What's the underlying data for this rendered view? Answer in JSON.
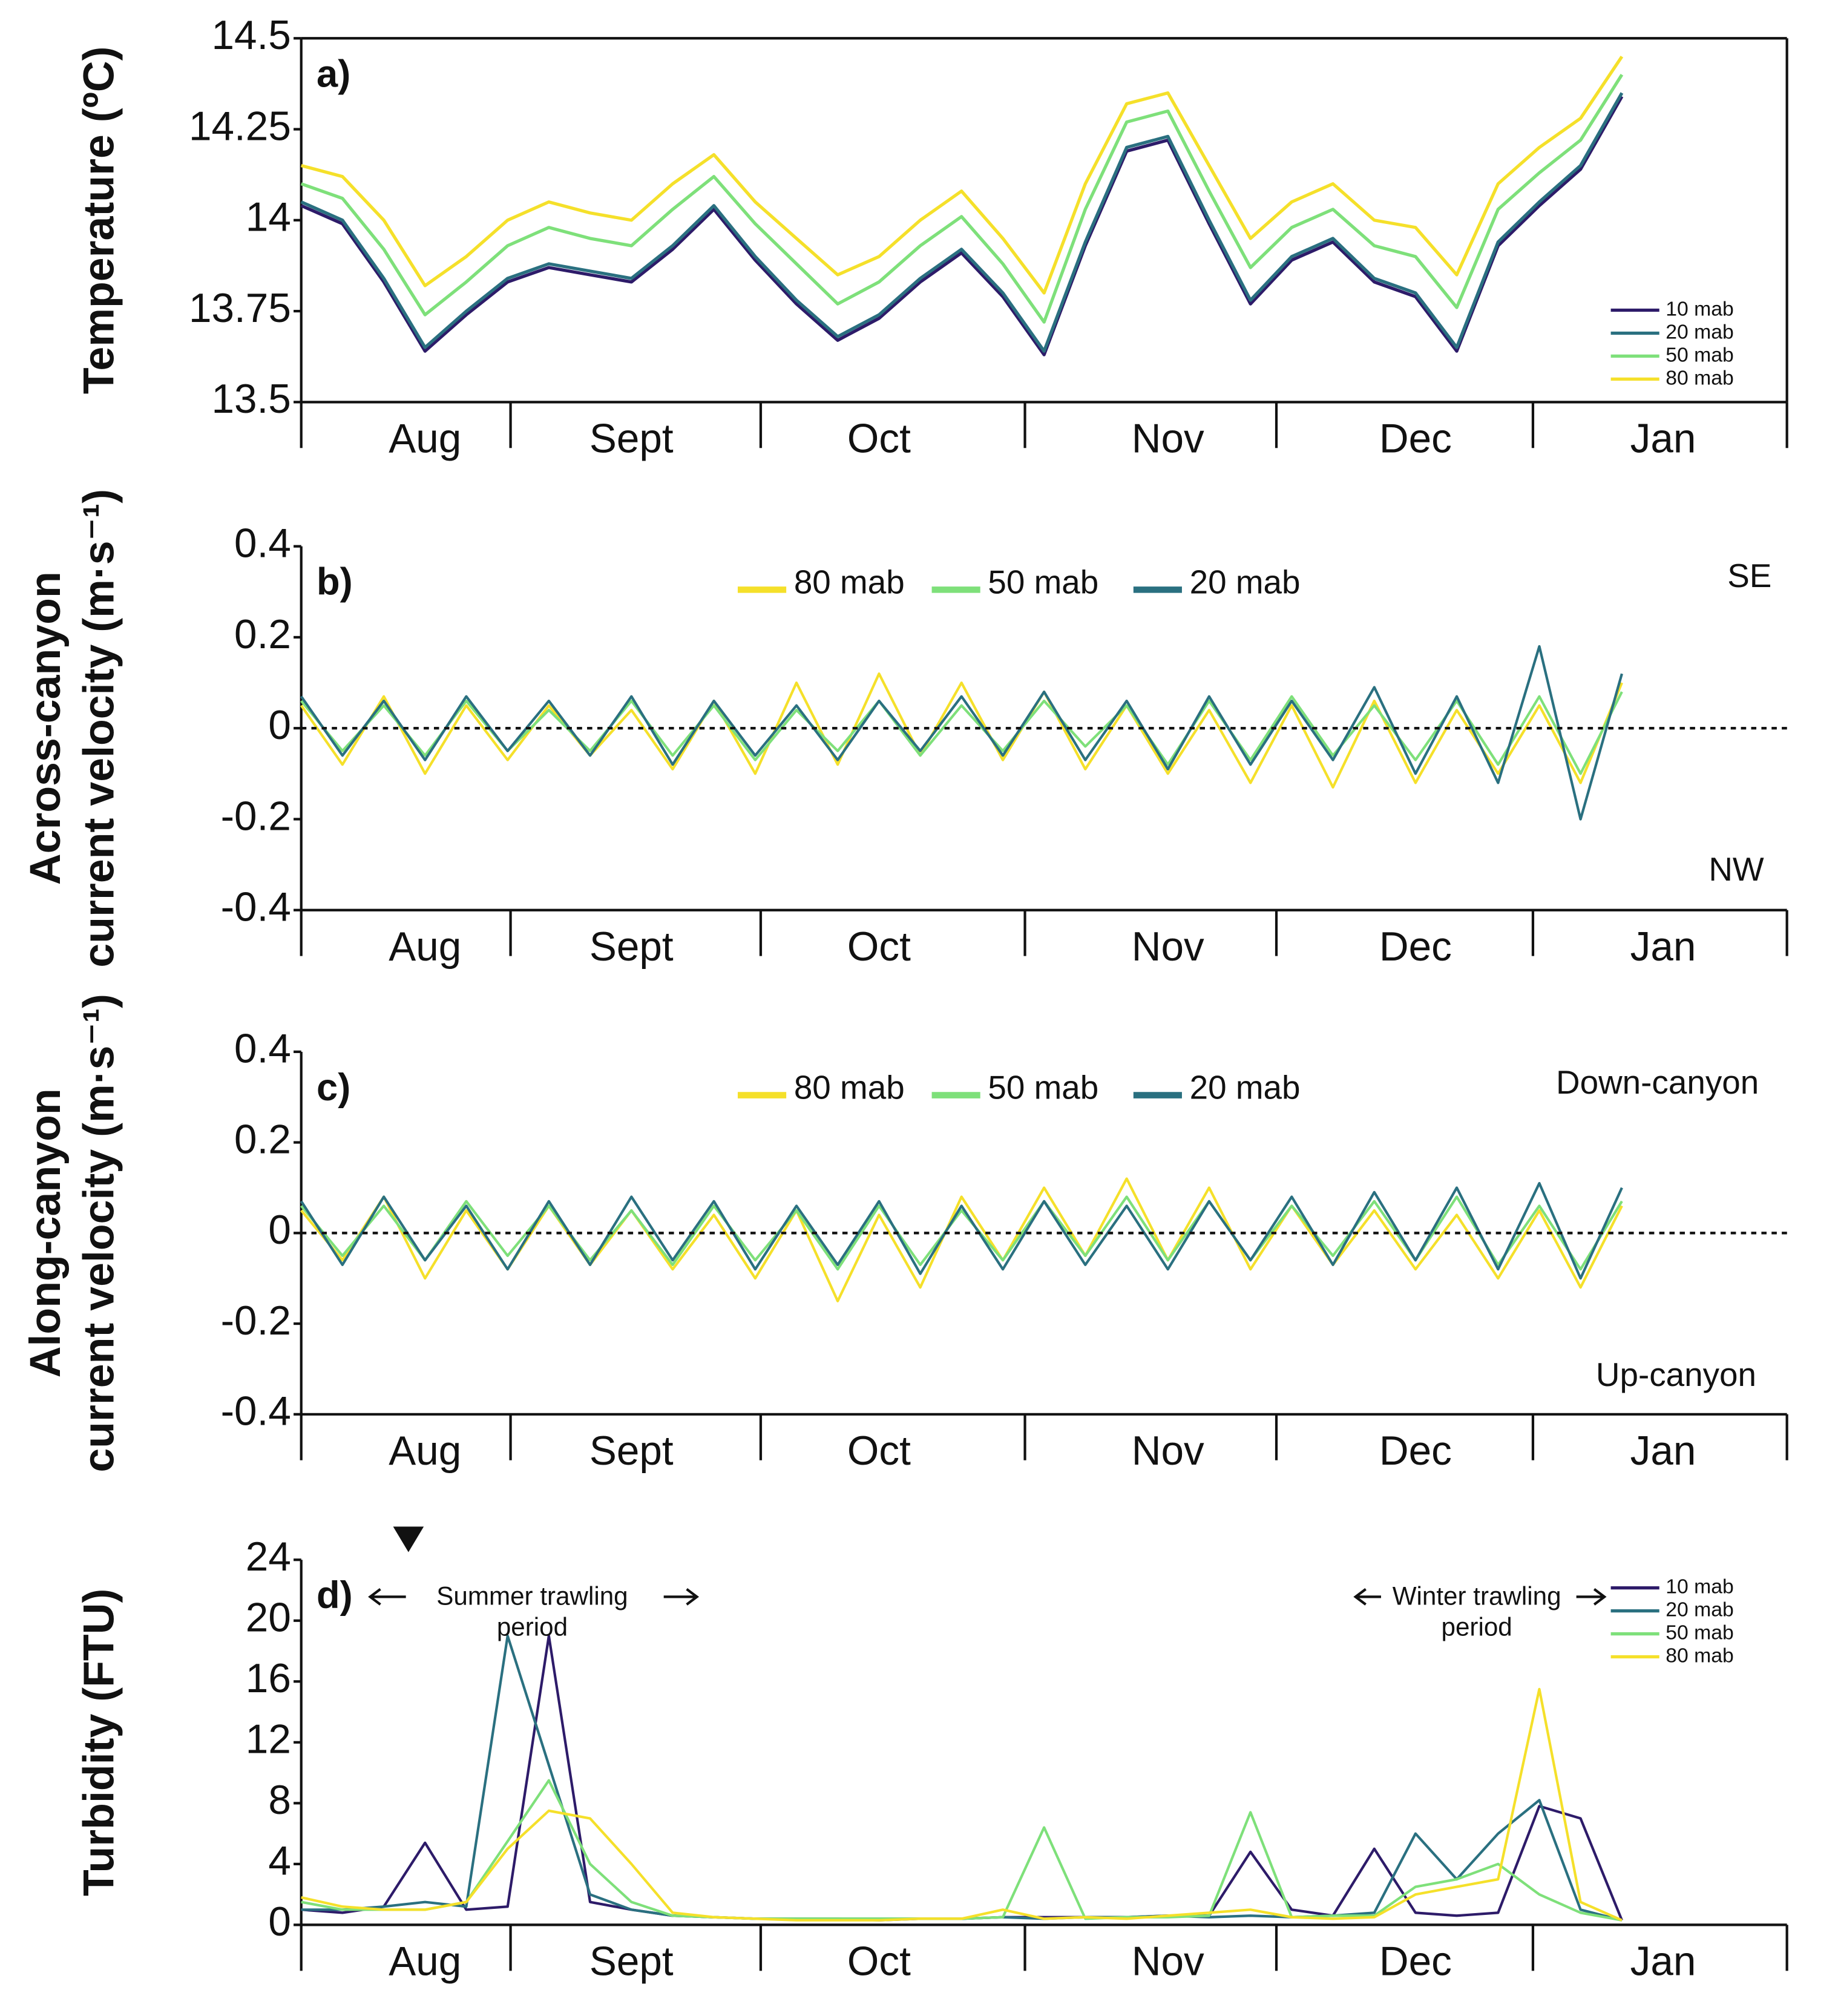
{
  "chart_data": [
    {
      "type": "line",
      "panel_label": "a)",
      "ylabel": [
        "Temperature (ºC)"
      ],
      "legend": "lower right",
      "categories": [
        null,
        null,
        null,
        "Aug",
        null,
        null,
        null,
        null,
        "Sept",
        null,
        null,
        null,
        null,
        null,
        "Oct",
        null,
        null,
        null,
        null,
        null,
        null,
        "Nov",
        null,
        null,
        null,
        null,
        null,
        "Dec",
        null,
        null,
        null,
        null,
        null,
        "Jan",
        null,
        null,
        null
      ],
      "ylim": [
        13.5,
        14.5
      ],
      "yticks": [
        13.5,
        13.75,
        14,
        14.25,
        14.5
      ],
      "series": [
        {
          "name": "10 mab",
          "color": "#2d1b69",
          "values": [
            14.04,
            13.99,
            13.83,
            13.64,
            13.74,
            13.83,
            13.87,
            13.85,
            13.83,
            13.92,
            14.03,
            13.89,
            13.77,
            13.67,
            13.73,
            13.83,
            13.91,
            13.79,
            13.63,
            13.93,
            14.19,
            14.22,
            13.99,
            13.77,
            13.89,
            13.94,
            13.83,
            13.79,
            13.64,
            13.93,
            14.04,
            14.14,
            14.34,
            null,
            null,
            null,
            null
          ]
        },
        {
          "name": "20 mab",
          "color": "#2a7080",
          "values": [
            14.05,
            14.0,
            13.84,
            13.65,
            13.75,
            13.84,
            13.88,
            13.86,
            13.84,
            13.93,
            14.04,
            13.9,
            13.78,
            13.68,
            13.74,
            13.84,
            13.92,
            13.8,
            13.64,
            13.94,
            14.2,
            14.23,
            14.0,
            13.78,
            13.9,
            13.95,
            13.84,
            13.8,
            13.65,
            13.94,
            14.05,
            14.15,
            14.35,
            null,
            null,
            null,
            null
          ]
        },
        {
          "name": "50 mab",
          "color": "#7ee07a",
          "values": [
            14.1,
            14.06,
            13.92,
            13.74,
            13.83,
            13.93,
            13.98,
            13.95,
            13.93,
            14.03,
            14.12,
            13.99,
            13.88,
            13.77,
            13.83,
            13.93,
            14.01,
            13.88,
            13.72,
            14.03,
            14.27,
            14.3,
            14.08,
            13.87,
            13.98,
            14.03,
            13.93,
            13.9,
            13.76,
            14.03,
            14.13,
            14.22,
            14.4,
            null,
            null,
            null,
            null
          ]
        },
        {
          "name": "80 mab",
          "color": "#f5e02a",
          "values": [
            14.15,
            14.12,
            14.0,
            13.82,
            13.9,
            14.0,
            14.05,
            14.02,
            14.0,
            14.1,
            14.18,
            14.05,
            13.95,
            13.85,
            13.9,
            14.0,
            14.08,
            13.95,
            13.8,
            14.1,
            14.32,
            14.35,
            14.15,
            13.95,
            14.05,
            14.1,
            14.0,
            13.98,
            13.85,
            14.1,
            14.2,
            14.28,
            14.45,
            null,
            null,
            null,
            null
          ]
        }
      ]
    },
    {
      "type": "line",
      "panel_label": "b)",
      "ylabel": [
        "Across-canyon",
        "current velocity (m·s⁻¹)"
      ],
      "legend": "upper center",
      "annotations": [
        "SE",
        "NW"
      ],
      "hline": 0,
      "categories": [
        null,
        null,
        null,
        "Aug",
        null,
        null,
        null,
        null,
        "Sept",
        null,
        null,
        null,
        null,
        null,
        "Oct",
        null,
        null,
        null,
        null,
        null,
        null,
        "Nov",
        null,
        null,
        null,
        null,
        null,
        "Dec",
        null,
        null,
        null,
        null,
        null,
        "Jan",
        null,
        null,
        null
      ],
      "ylim": [
        -0.4,
        0.4
      ],
      "yticks": [
        -0.4,
        -0.2,
        0,
        0.2,
        0.4
      ],
      "series": [
        {
          "name": "80 mab",
          "color": "#f5e02a",
          "values": [
            0.05,
            -0.08,
            0.07,
            -0.1,
            0.05,
            -0.07,
            0.05,
            -0.06,
            0.04,
            -0.09,
            0.06,
            -0.1,
            0.1,
            -0.08,
            0.12,
            -0.06,
            0.1,
            -0.07,
            0.08,
            -0.09,
            0.05,
            -0.1,
            0.04,
            -0.12,
            0.05,
            -0.13,
            0.06,
            -0.12,
            0.04,
            -0.1,
            0.05,
            -0.12,
            0.1,
            null,
            null,
            null,
            null
          ]
        },
        {
          "name": "50 mab",
          "color": "#7ee07a",
          "values": [
            0.06,
            -0.05,
            0.05,
            -0.06,
            0.06,
            -0.05,
            0.04,
            -0.05,
            0.06,
            -0.06,
            0.05,
            -0.07,
            0.04,
            -0.05,
            0.06,
            -0.06,
            0.05,
            -0.05,
            0.06,
            -0.04,
            0.05,
            -0.08,
            0.06,
            -0.07,
            0.07,
            -0.06,
            0.05,
            -0.07,
            0.06,
            -0.08,
            0.07,
            -0.1,
            0.08,
            null,
            null,
            null,
            null
          ]
        },
        {
          "name": "20 mab",
          "color": "#2a7080",
          "values": [
            0.07,
            -0.06,
            0.06,
            -0.07,
            0.07,
            -0.05,
            0.06,
            -0.06,
            0.07,
            -0.08,
            0.06,
            -0.06,
            0.05,
            -0.07,
            0.06,
            -0.05,
            0.07,
            -0.06,
            0.08,
            -0.07,
            0.06,
            -0.09,
            0.07,
            -0.08,
            0.06,
            -0.07,
            0.09,
            -0.1,
            0.07,
            -0.12,
            0.18,
            -0.2,
            0.12,
            null,
            null,
            null,
            null
          ]
        }
      ]
    },
    {
      "type": "line",
      "panel_label": "c)",
      "ylabel": [
        "Along-canyon",
        "current velocity (m·s⁻¹)"
      ],
      "legend": "upper center",
      "annotations": [
        "Down-canyon",
        "Up-canyon"
      ],
      "hline": 0,
      "categories": [
        null,
        null,
        null,
        "Aug",
        null,
        null,
        null,
        null,
        "Sept",
        null,
        null,
        null,
        null,
        null,
        "Oct",
        null,
        null,
        null,
        null,
        null,
        null,
        "Nov",
        null,
        null,
        null,
        null,
        null,
        "Dec",
        null,
        null,
        null,
        null,
        null,
        "Jan",
        null,
        null,
        null
      ],
      "ylim": [
        -0.4,
        0.4
      ],
      "yticks": [
        -0.4,
        -0.2,
        0,
        0.2,
        0.4
      ],
      "series": [
        {
          "name": "80 mab",
          "color": "#f5e02a",
          "values": [
            0.05,
            -0.06,
            0.08,
            -0.1,
            0.05,
            -0.08,
            0.06,
            -0.07,
            0.05,
            -0.08,
            0.04,
            -0.1,
            0.05,
            -0.15,
            0.04,
            -0.12,
            0.08,
            -0.06,
            0.1,
            -0.05,
            0.12,
            -0.06,
            0.1,
            -0.08,
            0.06,
            -0.07,
            0.05,
            -0.08,
            0.04,
            -0.1,
            0.05,
            -0.12,
            0.06,
            null,
            null,
            null,
            null
          ]
        },
        {
          "name": "50 mab",
          "color": "#7ee07a",
          "values": [
            0.06,
            -0.05,
            0.06,
            -0.06,
            0.07,
            -0.05,
            0.06,
            -0.06,
            0.05,
            -0.07,
            0.06,
            -0.06,
            0.05,
            -0.08,
            0.06,
            -0.07,
            0.05,
            -0.06,
            0.07,
            -0.05,
            0.08,
            -0.06,
            0.07,
            -0.06,
            0.06,
            -0.05,
            0.07,
            -0.06,
            0.08,
            -0.07,
            0.06,
            -0.08,
            0.07,
            null,
            null,
            null,
            null
          ]
        },
        {
          "name": "20 mab",
          "color": "#2a7080",
          "values": [
            0.07,
            -0.07,
            0.08,
            -0.06,
            0.06,
            -0.08,
            0.07,
            -0.07,
            0.08,
            -0.06,
            0.07,
            -0.08,
            0.06,
            -0.07,
            0.07,
            -0.09,
            0.06,
            -0.08,
            0.07,
            -0.07,
            0.06,
            -0.08,
            0.07,
            -0.06,
            0.08,
            -0.07,
            0.09,
            -0.06,
            0.1,
            -0.08,
            0.11,
            -0.1,
            0.1,
            null,
            null,
            null,
            null
          ]
        }
      ]
    },
    {
      "type": "line",
      "panel_label": "d)",
      "ylabel": [
        "Turbidity (FTU)"
      ],
      "legend": "upper right",
      "annotations": [
        "Summer trawling",
        "period",
        "Winter trawling",
        "period"
      ],
      "categories": [
        null,
        null,
        null,
        "Aug",
        null,
        null,
        null,
        null,
        "Sept",
        null,
        null,
        null,
        null,
        null,
        "Oct",
        null,
        null,
        null,
        null,
        null,
        null,
        "Nov",
        null,
        null,
        null,
        null,
        null,
        "Dec",
        null,
        null,
        null,
        null,
        null,
        "Jan",
        null,
        null,
        null
      ],
      "ylim": [
        0,
        24
      ],
      "yticks": [
        0,
        4,
        8,
        12,
        16,
        20,
        24
      ],
      "series": [
        {
          "name": "10 mab",
          "color": "#2d1b69",
          "values": [
            1,
            0.8,
            1.2,
            5.4,
            1,
            1.2,
            19,
            1.5,
            1,
            0.6,
            0.5,
            0.4,
            0.4,
            0.4,
            0.3,
            0.4,
            0.4,
            0.5,
            0.5,
            0.5,
            0.5,
            0.6,
            0.6,
            4.8,
            1,
            0.6,
            5,
            0.8,
            0.6,
            0.8,
            7.8,
            7,
            0.3,
            null,
            null,
            null,
            null
          ]
        },
        {
          "name": "20 mab",
          "color": "#2a7080",
          "values": [
            1,
            1,
            1.2,
            1.5,
            1.2,
            19,
            10.5,
            2,
            1,
            0.6,
            0.5,
            0.4,
            0.4,
            0.4,
            0.4,
            0.4,
            0.4,
            0.5,
            0.4,
            0.5,
            0.5,
            0.6,
            0.5,
            0.6,
            0.5,
            0.6,
            0.8,
            6,
            3,
            6,
            8.2,
            1,
            0.3,
            null,
            null,
            null,
            null
          ]
        },
        {
          "name": "50 mab",
          "color": "#7ee07a",
          "values": [
            1.5,
            1,
            1,
            1,
            1.5,
            5.5,
            9.5,
            4,
            1.5,
            0.6,
            0.5,
            0.4,
            0.4,
            0.4,
            0.4,
            0.4,
            0.4,
            0.5,
            6.4,
            0.4,
            0.5,
            0.5,
            0.6,
            7.4,
            0.5,
            0.6,
            0.6,
            2.5,
            3,
            4,
            2,
            0.8,
            0.3,
            null,
            null,
            null,
            null
          ]
        },
        {
          "name": "80 mab",
          "color": "#f5e02a",
          "values": [
            1.8,
            1.2,
            1,
            1,
            1.5,
            5,
            7.5,
            7,
            4,
            0.8,
            0.5,
            0.4,
            0.3,
            0.3,
            0.3,
            0.4,
            0.4,
            1,
            0.4,
            0.5,
            0.4,
            0.6,
            0.8,
            1,
            0.5,
            0.4,
            0.5,
            2,
            2.5,
            3,
            15.5,
            1.5,
            0.3,
            null,
            null,
            null,
            null
          ]
        }
      ]
    }
  ]
}
